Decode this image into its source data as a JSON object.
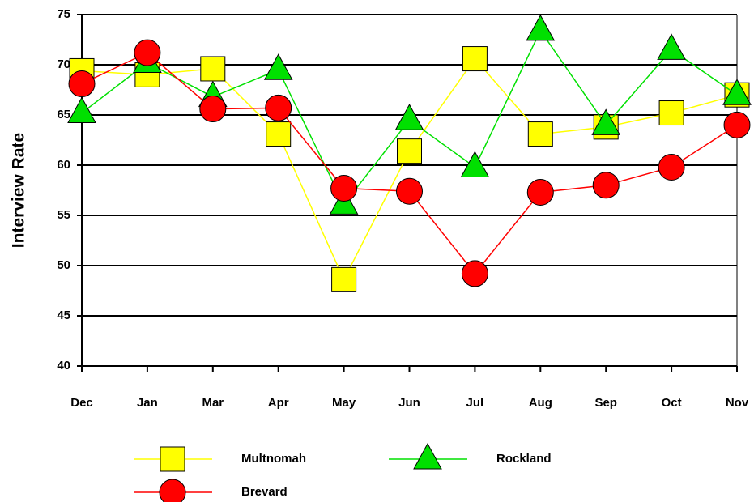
{
  "chart_data": {
    "type": "line",
    "y_label": "Interview Rate",
    "categories": [
      "Dec",
      "Jan",
      "Mar",
      "Apr",
      "May",
      "Jun",
      "Jul",
      "Aug",
      "Sep",
      "Oct",
      "Nov"
    ],
    "series": [
      {
        "name": "Multnomah",
        "color": "#ffff00",
        "marker": "square",
        "values": [
          69.4,
          69.0,
          69.6,
          63.1,
          48.6,
          61.4,
          70.6,
          63.1,
          63.8,
          65.2,
          67.0
        ]
      },
      {
        "name": "Rockland",
        "color": "#00e000",
        "marker": "triangle",
        "values": [
          65.2,
          70.2,
          66.8,
          69.5,
          56.1,
          64.5,
          59.8,
          73.4,
          64.0,
          71.5,
          67.0
        ]
      },
      {
        "name": "Brevard",
        "color": "#ff0000",
        "marker": "circle",
        "values": [
          68.1,
          71.2,
          65.6,
          65.7,
          57.7,
          57.4,
          49.2,
          57.3,
          58.0,
          59.8,
          64.0
        ]
      }
    ],
    "ylim": [
      40,
      75
    ],
    "yticks": [
      40,
      45,
      50,
      55,
      60,
      65,
      70,
      75
    ],
    "grid": true,
    "legend": "bottom"
  }
}
